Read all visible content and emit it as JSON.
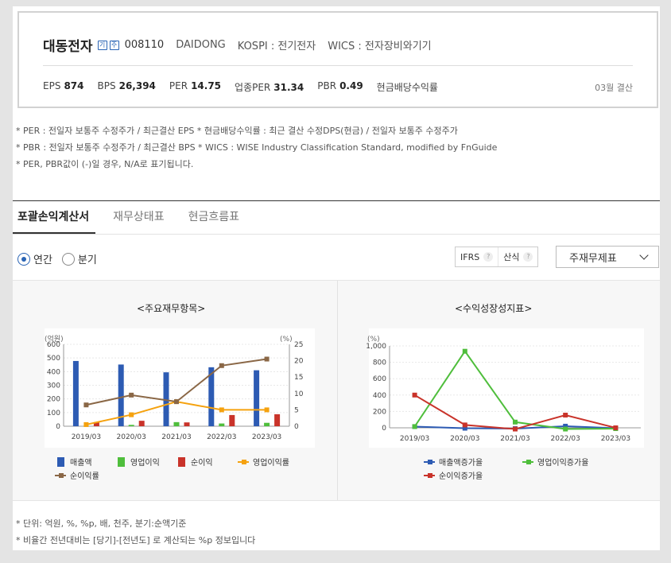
{
  "company": {
    "name": "대동전자",
    "icon1": "기",
    "icon2": "주",
    "code": "008110",
    "name_en": "DAIDONG",
    "market": "KOSPI : 전기전자",
    "wics": "WICS : 전자장비와기기"
  },
  "ratios": [
    {
      "label": "EPS",
      "value": "874"
    },
    {
      "label": "BPS",
      "value": "26,394"
    },
    {
      "label": "PER",
      "value": "14.75"
    },
    {
      "label": "업종PER",
      "value": "31.34"
    },
    {
      "label": "PBR",
      "value": "0.49"
    },
    {
      "label": "현금배당수익률",
      "value": ""
    }
  ],
  "settlement": "03월 결산",
  "notes": [
    "* PER : 전일자 보통주 수정주가 / 최근결산 EPS * 현금배당수익률 : 최근 결산 수정DPS(현금) / 전일자 보통주 수정주가",
    "* PBR : 전일자 보통주 수정주가 / 최근결산 BPS * WICS : WISE Industry Classification Standard, modified by FnGuide",
    "* PER, PBR값이 (-)일 경우, N/A로 표기됩니다."
  ],
  "tabs": [
    "포괄손익계산서",
    "재무상태표",
    "현금흐름표"
  ],
  "period": {
    "annual": "연간",
    "quarter": "분기"
  },
  "buttons": {
    "ifrs": "IFRS",
    "calc": "산식",
    "help": "?"
  },
  "select": {
    "value": "주재무제표"
  },
  "charts": {
    "left_title": "<주요재무항목>",
    "right_title": "<수익성장성지표>"
  },
  "chart_data": [
    {
      "type": "bar",
      "title": "<주요재무항목>",
      "left_axis_unit": "(억원)",
      "right_axis_unit": "(%)",
      "categories": [
        "2019/03",
        "2020/03",
        "2021/03",
        "2022/03",
        "2023/03"
      ],
      "ylim_left": [
        0,
        600
      ],
      "yticks_left": [
        "0",
        "100",
        "200",
        "300",
        "400",
        "500",
        "600"
      ],
      "ylim_right": [
        0,
        25
      ],
      "yticks_right": [
        "0",
        "5",
        "10",
        "15",
        "20",
        "25"
      ],
      "series": [
        {
          "name": "매출액",
          "kind": "bar",
          "axis": "left",
          "color": "#2d5bb3",
          "values": [
            478,
            452,
            395,
            432,
            410
          ]
        },
        {
          "name": "영업이익",
          "kind": "bar",
          "axis": "left",
          "color": "#4fbe3c",
          "values": [
            2,
            10,
            30,
            20,
            25
          ]
        },
        {
          "name": "순이익",
          "kind": "bar",
          "axis": "left",
          "color": "#c9332a",
          "values": [
            30,
            40,
            28,
            82,
            88
          ]
        },
        {
          "name": "영업이익률",
          "kind": "line",
          "axis": "right",
          "color": "#f5a20f",
          "values": [
            0.5,
            3.5,
            7.5,
            5.0,
            5.0
          ]
        },
        {
          "name": "순이익률",
          "kind": "line",
          "axis": "right",
          "color": "#8a6746",
          "values": [
            6.5,
            9.5,
            7.5,
            18.5,
            20.5
          ]
        }
      ],
      "legend": "bottom"
    },
    {
      "type": "line",
      "title": "<수익성장성지표>",
      "left_axis_unit": "(%)",
      "categories": [
        "2019/03",
        "2020/03",
        "2021/03",
        "2022/03",
        "2023/03"
      ],
      "ylim": [
        0,
        1000
      ],
      "yticks": [
        "0",
        "200",
        "400",
        "600",
        "800",
        "1,000"
      ],
      "series": [
        {
          "name": "매출액증가율",
          "color": "#2d5bb3",
          "values": [
            15,
            -5,
            -10,
            20,
            -5
          ]
        },
        {
          "name": "영업이익증가율",
          "color": "#4fbe3c",
          "values": [
            15,
            935,
            70,
            -15,
            -10
          ]
        },
        {
          "name": "순이익증가율",
          "color": "#c9332a",
          "values": [
            400,
            35,
            -15,
            155,
            0
          ]
        }
      ],
      "legend": "bottom"
    }
  ],
  "footnotes": [
    "* 단위: 억원, %, %p, 배, 천주, 분기:순액기준",
    "* 비율간 전년대비는 [당기]-[전년도] 로 계산되는 %p 정보입니다"
  ]
}
